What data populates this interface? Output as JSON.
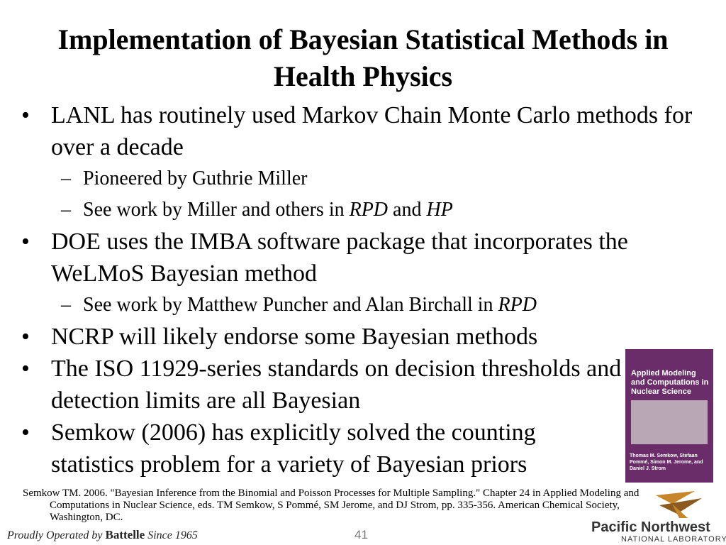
{
  "title": "Implementation of Bayesian Statistical Methods in Health Physics",
  "bullets": [
    {
      "runs": [
        {
          "text": "LANL has routinely used Markov Chain Monte Carlo methods for over a decade",
          "italic": false
        }
      ],
      "sub": [
        {
          "runs": [
            {
              "text": "Pioneered by Guthrie Miller",
              "italic": false
            }
          ]
        },
        {
          "runs": [
            {
              "text": "See work by Miller and others in ",
              "italic": false
            },
            {
              "text": "RPD",
              "italic": true
            },
            {
              "text": " and ",
              "italic": false
            },
            {
              "text": "HP",
              "italic": true
            }
          ]
        }
      ]
    },
    {
      "runs": [
        {
          "text": "DOE uses the IMBA software package that incorporates the WeLMoS Bayesian method",
          "italic": false
        }
      ],
      "sub": [
        {
          "runs": [
            {
              "text": "See work by Matthew Puncher and Alan Birchall in ",
              "italic": false
            },
            {
              "text": "RPD",
              "italic": true
            }
          ]
        }
      ]
    },
    {
      "runs": [
        {
          "text": "NCRP will likely endorse some Bayesian methods",
          "italic": false
        }
      ],
      "sub": []
    },
    {
      "runs": [
        {
          "text": "The ISO 11929-series standards on decision thresholds and detection limits are all Bayesian",
          "italic": false
        }
      ],
      "sub": []
    },
    {
      "runs": [
        {
          "text": "Semkow (2006) has explicitly solved the counting statistics problem for a variety of Bayesian priors",
          "italic": false
        }
      ],
      "sub": []
    }
  ],
  "reference": "Semkow TM. 2006. \"Bayesian Inference from the Binomial and Poisson Processes for Multiple Sampling.\" Chapter 24 in Applied Modeling and Computations in Nuclear Science, eds. TM Semkow, S Pommé, SM Jerome, and DJ Strom, pp. 335-356. American Chemical Society, Washington, DC.",
  "book_cover": {
    "title": "Applied Modeling and Computations in Nuclear Science",
    "editors": "Thomas M. Semkow, Stefaan Pommé, Simon M. Jerome, and Daniel J. Strom"
  },
  "footer": {
    "operated": "Proudly Operated by",
    "battelle": "Battelle",
    "since": "Since 1965",
    "page_number": "41"
  },
  "logo": {
    "name": "Pacific Northwest",
    "subtitle": "NATIONAL LABORATORY"
  }
}
